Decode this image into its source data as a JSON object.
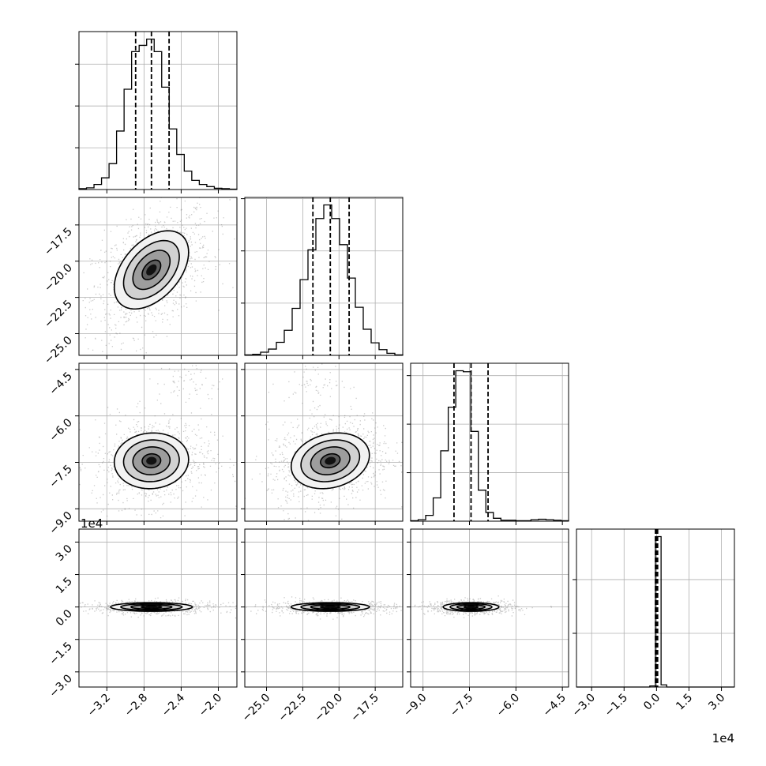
{
  "chart_data": {
    "type": "corner",
    "grid": true,
    "scatter_color": "#666666",
    "line_color": "#000000",
    "parameters": [
      {
        "range": [
          -3.5,
          -1.8
        ],
        "ticks": [
          -3.2,
          -2.8,
          -2.4,
          -2.0
        ],
        "tick_labels": [
          "−3.2",
          "−2.8",
          "−2.4",
          "−2.0"
        ],
        "quantiles": [
          -2.89,
          -2.72,
          -2.53
        ],
        "hist": {
          "edges_range": [
            -3.5,
            -1.8
          ],
          "counts": [
            2,
            4,
            12,
            28,
            62,
            140,
            240,
            330,
            345,
            360,
            330,
            245,
            145,
            84,
            44,
            22,
            12,
            7,
            3,
            2,
            1
          ]
        }
      },
      {
        "range": [
          -26.5,
          -15.6
        ],
        "ticks": [
          -25.0,
          -22.5,
          -20.0,
          -17.5
        ],
        "tick_labels": [
          "−25.0",
          "−22.5",
          "−20.0",
          "−17.5"
        ],
        "quantiles": [
          -21.8,
          -20.6,
          -19.3
        ],
        "hist": {
          "edges_range": [
            -26.5,
            -15.6
          ],
          "counts": [
            1,
            2,
            6,
            12,
            25,
            48,
            90,
            145,
            202,
            262,
            288,
            262,
            212,
            148,
            92,
            50,
            24,
            11,
            4,
            1
          ]
        }
      },
      {
        "range": [
          -9.4,
          -4.3
        ],
        "ticks": [
          -9.0,
          -7.5,
          -6.0,
          -4.5
        ],
        "tick_labels": [
          "−9.0",
          "−7.5",
          "−6.0",
          "−4.5"
        ],
        "quantiles": [
          -8.0,
          -7.45,
          -6.9
        ],
        "hist": {
          "edges_range": [
            -9.4,
            -4.3
          ],
          "counts": [
            1,
            3,
            12,
            48,
            145,
            235,
            310,
            308,
            185,
            64,
            18,
            6,
            2,
            2,
            1,
            1,
            3,
            4,
            3,
            2,
            1
          ]
        }
      },
      {
        "range": [
          -3.7,
          3.6
        ],
        "exponent_label": "1e4",
        "ticks": [
          -3.0,
          -1.5,
          0.0,
          1.5,
          3.0
        ],
        "tick_labels": [
          "−3.0",
          "−1.5",
          "0.0",
          "1.5",
          "3.0"
        ],
        "quantiles": [
          -0.05,
          0.0,
          0.05
        ],
        "hist": {
          "edges_range": [
            -3.7,
            3.6
          ],
          "counts": [
            0,
            0,
            0,
            0,
            0,
            0,
            0,
            0,
            0,
            0,
            0,
            0,
            0,
            4,
            560,
            8,
            0,
            0,
            0,
            0,
            0,
            0,
            0,
            0,
            0,
            0,
            0,
            0
          ]
        }
      }
    ],
    "pairs": [
      {
        "row": 1,
        "col": 0,
        "center": [
          -2.72,
          -20.6
        ],
        "sd": [
          0.2,
          1.35
        ],
        "rho": 0.45,
        "scatter_n": 1100
      },
      {
        "row": 2,
        "col": 0,
        "center": [
          -2.72,
          -7.45
        ],
        "sd": [
          0.2,
          0.45
        ],
        "rho": 0.05,
        "scatter_n": 900,
        "secondary": {
          "center": [
            -2.3,
            -4.9
          ],
          "sd": [
            0.18,
            0.35
          ],
          "n": 60
        }
      },
      {
        "row": 2,
        "col": 1,
        "center": [
          -20.6,
          -7.45
        ],
        "sd": [
          1.35,
          0.45
        ],
        "rho": 0.2,
        "scatter_n": 1000,
        "secondary": {
          "center": [
            -21.5,
            -4.9
          ],
          "sd": [
            1.1,
            0.35
          ],
          "n": 60
        }
      },
      {
        "row": 3,
        "col": 0,
        "center": [
          -2.72,
          0.0
        ],
        "sd": [
          0.22,
          0.1
        ],
        "rho": 0.0,
        "scatter_n": 700
      },
      {
        "row": 3,
        "col": 1,
        "center": [
          -20.6,
          0.0
        ],
        "sd": [
          1.35,
          0.1
        ],
        "rho": 0.0,
        "scatter_n": 700
      },
      {
        "row": 3,
        "col": 2,
        "center": [
          -7.45,
          0.0
        ],
        "sd": [
          0.45,
          0.1
        ],
        "rho": 0.0,
        "scatter_n": 700
      }
    ],
    "contour_levels_sigma": [
      0.5,
      1.0,
      1.5,
      2.0
    ]
  }
}
